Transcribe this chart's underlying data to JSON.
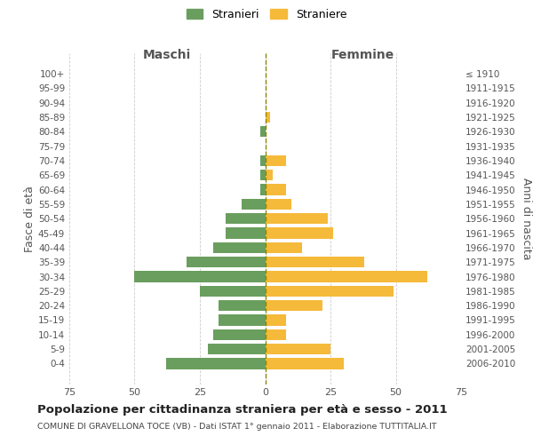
{
  "age_groups": [
    "100+",
    "95-99",
    "90-94",
    "85-89",
    "80-84",
    "75-79",
    "70-74",
    "65-69",
    "60-64",
    "55-59",
    "50-54",
    "45-49",
    "40-44",
    "35-39",
    "30-34",
    "25-29",
    "20-24",
    "15-19",
    "10-14",
    "5-9",
    "0-4"
  ],
  "birth_years": [
    "≤ 1910",
    "1911-1915",
    "1916-1920",
    "1921-1925",
    "1926-1930",
    "1931-1935",
    "1936-1940",
    "1941-1945",
    "1946-1950",
    "1951-1955",
    "1956-1960",
    "1961-1965",
    "1966-1970",
    "1971-1975",
    "1976-1980",
    "1981-1985",
    "1986-1990",
    "1991-1995",
    "1996-2000",
    "2001-2005",
    "2006-2010"
  ],
  "maschi": [
    0,
    0,
    0,
    0,
    2,
    0,
    2,
    2,
    2,
    9,
    15,
    15,
    20,
    30,
    50,
    25,
    18,
    18,
    20,
    22,
    38
  ],
  "femmine": [
    0,
    0,
    0,
    2,
    0,
    0,
    8,
    3,
    8,
    10,
    24,
    26,
    14,
    38,
    62,
    49,
    22,
    8,
    8,
    25,
    30
  ],
  "color_maschi": "#6a9e5e",
  "color_femmine": "#f5ba3a",
  "title": "Popolazione per cittadinanza straniera per età e sesso - 2011",
  "subtitle": "COMUNE DI GRAVELLONA TOCE (VB) - Dati ISTAT 1° gennaio 2011 - Elaborazione TUTTITALIA.IT",
  "xlabel_left": "Maschi",
  "xlabel_right": "Femmine",
  "ylabel_left": "Fasce di età",
  "ylabel_right": "Anni di nascita",
  "xlim": 75,
  "legend_stranieri": "Stranieri",
  "legend_straniere": "Straniere",
  "bg_color": "#ffffff",
  "grid_color": "#cccccc",
  "axis_text_color": "#555555",
  "center_line_color": "#888800"
}
